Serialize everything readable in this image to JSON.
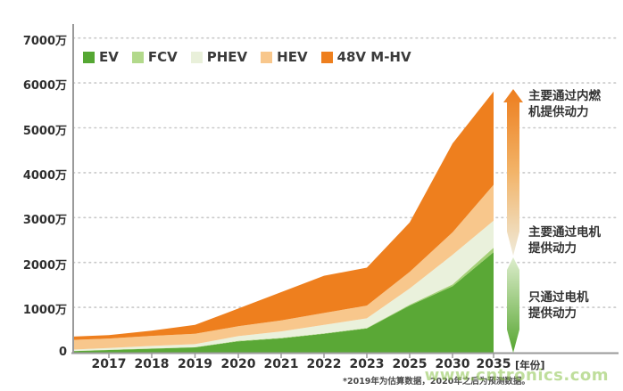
{
  "legend": [
    {
      "label": "EV",
      "color": "#55a733"
    },
    {
      "label": "FCV",
      "color": "#b2d98b"
    },
    {
      "label": "PHEV",
      "color": "#e9f0da"
    },
    {
      "label": "HEV",
      "color": "#f8c78c"
    },
    {
      "label": "48V M-HV",
      "color": "#ee7f1e"
    }
  ],
  "annotations": [
    {
      "l1": "主要通过内燃",
      "l2": "机提供动力"
    },
    {
      "l1": "主要通过电机",
      "l2": "提供动力"
    },
    {
      "l1": "只通过电机",
      "l2": "提供动力"
    }
  ],
  "x_axis_unit": "[年份]",
  "footnote": "*2019年为估算数据，2020年之后为预测数据。",
  "watermark": "www.cntronics.com",
  "arrow_colors": {
    "ice_top": "#ed7d1d",
    "ice_mid": "#f2b469",
    "ice_bottom": "#efead9",
    "motor_top": "#ddedcc",
    "motor_bottom": "#55a52f"
  },
  "chart_data": {
    "type": "area",
    "stacked": true,
    "unit": "万辆",
    "title": "",
    "x": [
      "",
      "2017",
      "2018",
      "2019",
      "2020",
      "2021",
      "2022",
      "2023",
      "2025",
      "2030",
      "2035"
    ],
    "x_tick_labels": [
      "2017",
      "2018",
      "2019",
      "2020",
      "2021",
      "2022",
      "2023",
      "2025",
      "2030",
      "2035"
    ],
    "y_ticks": [
      {
        "label": "0",
        "v": 0
      },
      {
        "label": "1000万",
        "v": 1000
      },
      {
        "label": "2000万",
        "v": 2000
      },
      {
        "label": "3000万",
        "v": 3000
      },
      {
        "label": "4000万",
        "v": 4000
      },
      {
        "label": "5000万",
        "v": 5000
      },
      {
        "label": "6000万",
        "v": 6000
      },
      {
        "label": "7000万",
        "v": 7000
      }
    ],
    "ylim_wan": [
      0,
      7000
    ],
    "grid": "dotted-horizontal",
    "legend_position": "top-left",
    "series": [
      {
        "name": "EV",
        "color": "#5aa836",
        "values": [
          25,
          50,
          80,
          110,
          245,
          310,
          410,
          530,
          1040,
          1470,
          2230
        ]
      },
      {
        "name": "FCV",
        "color": "#a5d077",
        "values": [
          5,
          5,
          5,
          5,
          10,
          10,
          10,
          10,
          20,
          40,
          100
        ]
      },
      {
        "name": "PHEV",
        "color": "#eaf1dc",
        "values": [
          30,
          40,
          55,
          65,
          105,
          145,
          190,
          215,
          360,
          660,
          600
        ]
      },
      {
        "name": "HEV",
        "color": "#f8c78c",
        "values": [
          215,
          210,
          225,
          230,
          220,
          245,
          265,
          285,
          370,
          500,
          800
        ]
      },
      {
        "name": "48V M-HV",
        "color": "#ee7f1e",
        "values": [
          75,
          75,
          115,
          200,
          395,
          630,
          830,
          845,
          1100,
          1980,
          2080
        ]
      }
    ]
  }
}
